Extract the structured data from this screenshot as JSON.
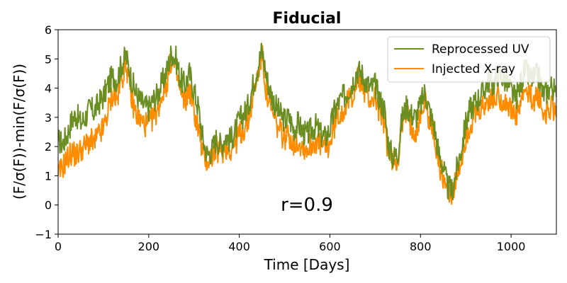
{
  "chart_data": {
    "type": "line",
    "title": "Fiducial",
    "xlabel": "Time [Days]",
    "ylabel": "(F/σ(F))-min(F/σ(F))",
    "xlim": [
      0,
      1100
    ],
    "ylim": [
      -1,
      6
    ],
    "x_ticks": [
      0,
      200,
      400,
      600,
      800,
      1000
    ],
    "y_ticks": [
      -1,
      0,
      1,
      2,
      3,
      4,
      5,
      6
    ],
    "grid": false,
    "legend_position": "top-right",
    "annotation": "r=0.9",
    "series": [
      {
        "name": "Reprocessed UV",
        "color": "#6b8e23",
        "x": [
          0,
          10,
          20,
          30,
          40,
          50,
          60,
          70,
          80,
          90,
          100,
          110,
          120,
          130,
          140,
          150,
          160,
          170,
          180,
          190,
          200,
          210,
          220,
          230,
          240,
          250,
          260,
          270,
          280,
          290,
          300,
          310,
          320,
          330,
          340,
          350,
          360,
          370,
          380,
          390,
          400,
          410,
          420,
          430,
          440,
          450,
          460,
          470,
          480,
          490,
          500,
          510,
          520,
          530,
          540,
          550,
          560,
          570,
          580,
          590,
          600,
          610,
          620,
          630,
          640,
          650,
          660,
          670,
          680,
          690,
          700,
          710,
          720,
          730,
          740,
          750,
          760,
          770,
          780,
          790,
          800,
          810,
          820,
          830,
          840,
          850,
          860,
          870,
          880,
          890,
          900,
          910,
          920,
          930,
          940,
          950,
          960,
          970,
          980,
          990,
          1000,
          1010,
          1020,
          1030,
          1040,
          1050,
          1060,
          1070,
          1080,
          1090,
          1100
        ],
        "values": [
          2.2,
          2.1,
          2.4,
          2.9,
          3.1,
          2.8,
          3.0,
          3.3,
          3.2,
          3.5,
          3.7,
          4.1,
          4.4,
          4.3,
          4.8,
          5.1,
          4.4,
          3.9,
          3.6,
          3.4,
          3.3,
          3.6,
          3.8,
          4.2,
          4.6,
          5.2,
          5.0,
          4.3,
          4.1,
          4.5,
          3.9,
          3.3,
          2.2,
          1.7,
          1.9,
          2.3,
          2.0,
          2.4,
          2.2,
          2.5,
          2.9,
          3.1,
          3.4,
          4.1,
          4.7,
          5.3,
          4.4,
          3.8,
          3.4,
          3.1,
          2.9,
          3.0,
          2.6,
          2.8,
          2.5,
          2.4,
          2.6,
          2.7,
          2.4,
          2.3,
          2.6,
          3.2,
          3.5,
          3.7,
          3.9,
          4.2,
          4.6,
          4.5,
          4.2,
          4.0,
          4.1,
          3.6,
          3.3,
          2.0,
          1.6,
          1.8,
          3.0,
          3.4,
          3.1,
          3.0,
          3.4,
          3.9,
          3.2,
          2.7,
          1.8,
          1.3,
          0.6,
          0.5,
          1.2,
          1.9,
          2.8,
          3.3,
          3.5,
          3.7,
          3.9,
          4.3,
          4.1,
          4.5,
          4.4,
          4.2,
          3.9,
          3.6,
          4.1,
          4.6,
          4.4,
          4.3,
          4.5,
          3.8,
          3.9,
          4.1,
          3.7
        ]
      },
      {
        "name": "Injected X-ray",
        "color": "#ff8c00",
        "x": [
          0,
          10,
          20,
          30,
          40,
          50,
          60,
          70,
          80,
          90,
          100,
          110,
          120,
          130,
          140,
          150,
          160,
          170,
          180,
          190,
          200,
          210,
          220,
          230,
          240,
          250,
          260,
          270,
          280,
          290,
          300,
          310,
          320,
          330,
          340,
          350,
          360,
          370,
          380,
          390,
          400,
          410,
          420,
          430,
          440,
          450,
          460,
          470,
          480,
          490,
          500,
          510,
          520,
          530,
          540,
          550,
          560,
          570,
          580,
          590,
          600,
          610,
          620,
          630,
          640,
          650,
          660,
          670,
          680,
          690,
          700,
          710,
          720,
          730,
          740,
          750,
          760,
          770,
          780,
          790,
          800,
          810,
          820,
          830,
          840,
          850,
          860,
          870,
          880,
          890,
          900,
          910,
          920,
          930,
          940,
          950,
          960,
          970,
          980,
          990,
          1000,
          1010,
          1020,
          1030,
          1040,
          1050,
          1060,
          1070,
          1080,
          1090,
          1100
        ],
        "values": [
          1.0,
          1.3,
          1.6,
          1.8,
          1.7,
          1.9,
          2.0,
          2.2,
          2.1,
          2.4,
          2.6,
          3.2,
          3.8,
          3.6,
          4.3,
          4.9,
          3.8,
          3.2,
          2.9,
          2.8,
          2.7,
          3.0,
          3.3,
          3.8,
          4.2,
          5.0,
          4.6,
          3.8,
          3.5,
          4.0,
          3.2,
          2.6,
          1.7,
          1.5,
          1.7,
          1.9,
          1.8,
          2.0,
          1.9,
          2.1,
          2.4,
          2.6,
          2.9,
          3.7,
          4.4,
          5.2,
          3.8,
          3.2,
          2.8,
          2.5,
          2.3,
          2.4,
          2.1,
          2.2,
          2.0,
          1.9,
          2.1,
          2.2,
          2.0,
          1.9,
          2.1,
          2.7,
          3.1,
          3.3,
          3.5,
          3.8,
          4.3,
          4.2,
          3.8,
          3.6,
          3.7,
          3.2,
          2.8,
          1.7,
          1.5,
          1.6,
          2.7,
          3.1,
          2.7,
          2.6,
          3.0,
          3.6,
          2.9,
          2.4,
          1.4,
          1.0,
          0.5,
          0.4,
          0.9,
          1.5,
          2.3,
          2.7,
          3.0,
          3.2,
          3.3,
          3.6,
          3.5,
          3.8,
          3.6,
          3.5,
          3.2,
          3.0,
          3.4,
          3.9,
          3.7,
          3.6,
          3.8,
          3.1,
          3.2,
          3.4,
          3.0
        ]
      }
    ]
  }
}
